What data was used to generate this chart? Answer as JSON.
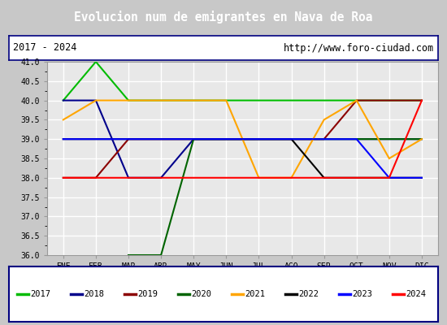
{
  "title": "Evolucion num de emigrantes en Nava de Roa",
  "subtitle_left": "2017 - 2024",
  "subtitle_right": "http://www.foro-ciudad.com",
  "months": [
    "ENE",
    "FEB",
    "MAR",
    "ABR",
    "MAY",
    "JUN",
    "JUL",
    "AGO",
    "SEP",
    "OCT",
    "NOV",
    "DIC"
  ],
  "ylim": [
    36.0,
    41.0
  ],
  "yticks": [
    36.0,
    36.5,
    37.0,
    37.5,
    38.0,
    38.5,
    39.0,
    39.5,
    40.0,
    40.5,
    41.0
  ],
  "series": [
    {
      "label": "2017",
      "color": "#00bb00",
      "x": [
        1,
        2,
        3,
        12
      ],
      "y": [
        40,
        41,
        40,
        40
      ]
    },
    {
      "label": "2018",
      "color": "#00008b",
      "x": [
        1,
        2,
        3,
        4,
        5,
        12
      ],
      "y": [
        40,
        40,
        38,
        38,
        39,
        39
      ]
    },
    {
      "label": "2019",
      "color": "#8b0000",
      "x": [
        1,
        2,
        3,
        9,
        10,
        12
      ],
      "y": [
        38,
        38,
        39,
        39,
        40,
        40
      ]
    },
    {
      "label": "2020",
      "color": "#006400",
      "x": [
        3,
        4,
        5,
        12
      ],
      "y": [
        36,
        36,
        39,
        39
      ]
    },
    {
      "label": "2021",
      "color": "#ffa500",
      "x": [
        1,
        2,
        6,
        7,
        8,
        9,
        10,
        11,
        12
      ],
      "y": [
        39.5,
        40,
        40,
        38,
        38,
        39.5,
        40,
        38.5,
        39
      ]
    },
    {
      "label": "2022",
      "color": "#000000",
      "x": [
        1,
        7,
        8,
        9,
        12
      ],
      "y": [
        39,
        39,
        39,
        38,
        38
      ]
    },
    {
      "label": "2023",
      "color": "#0000ff",
      "x": [
        1,
        9,
        10,
        11,
        12
      ],
      "y": [
        39,
        39,
        39,
        38,
        38
      ]
    },
    {
      "label": "2024",
      "color": "#ff0000",
      "x": [
        1,
        11,
        12
      ],
      "y": [
        38,
        38,
        40
      ]
    }
  ],
  "title_bg_color": "#5b8dd9",
  "title_font_color": "#ffffff",
  "plot_bg_color": "#e8e8e8",
  "outer_bg_color": "#c8c8c8",
  "subtitle_bg_color": "#ffffff",
  "grid_color": "#ffffff",
  "legend_bg_color": "#ffffff",
  "legend_border_color": "#000080"
}
